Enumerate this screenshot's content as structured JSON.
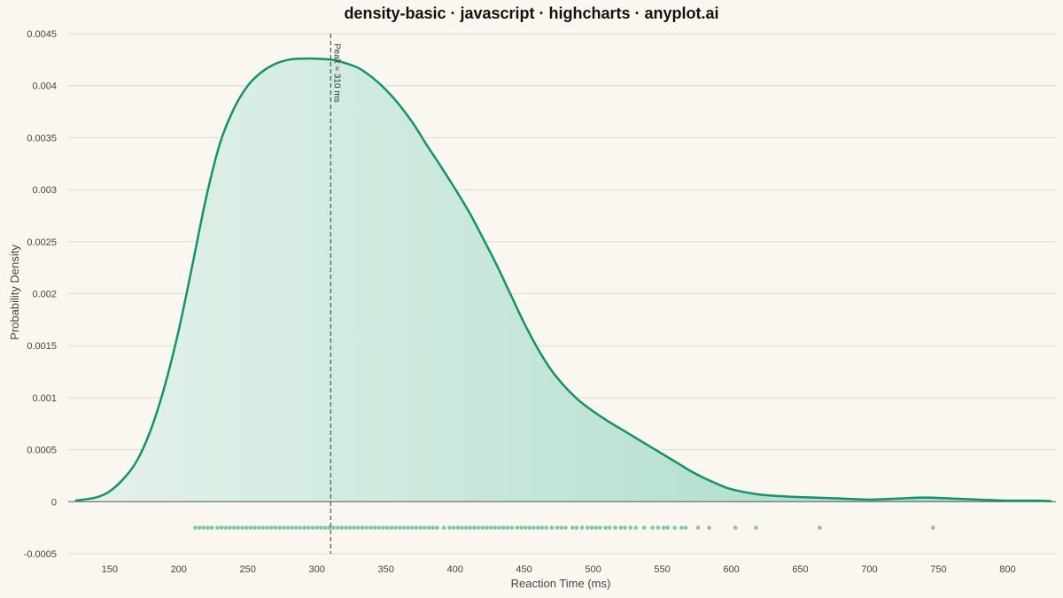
{
  "colors": {
    "background": "#faf7f0",
    "line": "#12936a",
    "fill_light": "#e4f2ea",
    "fill_dark": "#a1d8c4",
    "rug": "#7fc7b0",
    "grid": "#dcd9d2",
    "zero_line": "#555555"
  },
  "chart_data": {
    "type": "area",
    "title": "density-basic · javascript · highcharts · anyplot.ai",
    "xlabel": "Reaction Time (ms)",
    "ylabel": "Probability Density",
    "xlim": [
      120,
      835
    ],
    "ylim": [
      -0.0005,
      0.0045
    ],
    "x_ticks": [
      150,
      200,
      250,
      300,
      350,
      400,
      450,
      500,
      550,
      600,
      650,
      700,
      750,
      800
    ],
    "y_ticks": [
      -0.0005,
      0,
      0.0005,
      0.001,
      0.0015,
      0.002,
      0.0025,
      0.003,
      0.0035,
      0.004,
      0.0045
    ],
    "y_tick_labels": [
      "-0.0005",
      "0",
      "0.0005",
      "0.001",
      "0.0015",
      "0.002",
      "0.0025",
      "0.003",
      "0.0035",
      "0.004",
      "0.0045"
    ],
    "grid": true,
    "series": [
      {
        "x": [
          125,
          140,
          150,
          160,
          170,
          180,
          190,
          200,
          210,
          220,
          230,
          240,
          250,
          260,
          270,
          280,
          290,
          300,
          310,
          320,
          330,
          340,
          350,
          360,
          370,
          380,
          390,
          400,
          410,
          420,
          430,
          440,
          450,
          460,
          470,
          480,
          490,
          500,
          510,
          520,
          530,
          540,
          550,
          560,
          570,
          580,
          590,
          600,
          620,
          640,
          660,
          680,
          700,
          720,
          740,
          760,
          780,
          800,
          820,
          832
        ],
        "y": [
          1e-05,
          4e-05,
          0.0001,
          0.00022,
          0.0004,
          0.0007,
          0.00112,
          0.00165,
          0.00228,
          0.00293,
          0.00345,
          0.00378,
          0.004,
          0.00413,
          0.00421,
          0.00425,
          0.00426,
          0.00426,
          0.00425,
          0.00422,
          0.00417,
          0.00408,
          0.00396,
          0.00381,
          0.00363,
          0.00342,
          0.00322,
          0.00301,
          0.00279,
          0.00254,
          0.00228,
          0.002,
          0.00172,
          0.00147,
          0.00126,
          0.0011,
          0.00097,
          0.00087,
          0.00078,
          0.0007,
          0.00062,
          0.00054,
          0.00046,
          0.00038,
          0.0003,
          0.00023,
          0.00017,
          0.00012,
          7e-05,
          5e-05,
          4e-05,
          3e-05,
          2e-05,
          3e-05,
          4e-05,
          3e-05,
          2e-05,
          1e-05,
          1e-05,
          5e-06
        ]
      }
    ],
    "rug": {
      "y": -0.00025,
      "x": [
        212,
        215,
        218,
        221,
        224,
        228,
        231,
        234,
        237,
        240,
        243,
        246,
        249,
        252,
        255,
        258,
        261,
        264,
        267,
        270,
        273,
        276,
        279,
        282,
        285,
        288,
        291,
        294,
        297,
        300,
        303,
        306,
        309,
        312,
        315,
        318,
        321,
        324,
        327,
        330,
        333,
        336,
        339,
        342,
        345,
        348,
        351,
        354,
        357,
        360,
        363,
        366,
        369,
        372,
        375,
        378,
        381,
        384,
        387,
        392,
        396,
        399,
        402,
        405,
        408,
        411,
        414,
        417,
        420,
        423,
        426,
        429,
        432,
        435,
        438,
        441,
        445,
        448,
        451,
        454,
        457,
        460,
        463,
        466,
        470,
        474,
        477,
        480,
        485,
        488,
        492,
        496,
        499,
        502,
        505,
        509,
        512,
        516,
        520,
        523,
        527,
        531,
        537,
        543,
        547,
        551,
        554,
        559,
        564,
        567,
        576,
        584,
        603,
        618,
        664,
        746
      ]
    },
    "peak": {
      "x": 310,
      "label": "Peak ≈ 310 ms"
    }
  }
}
